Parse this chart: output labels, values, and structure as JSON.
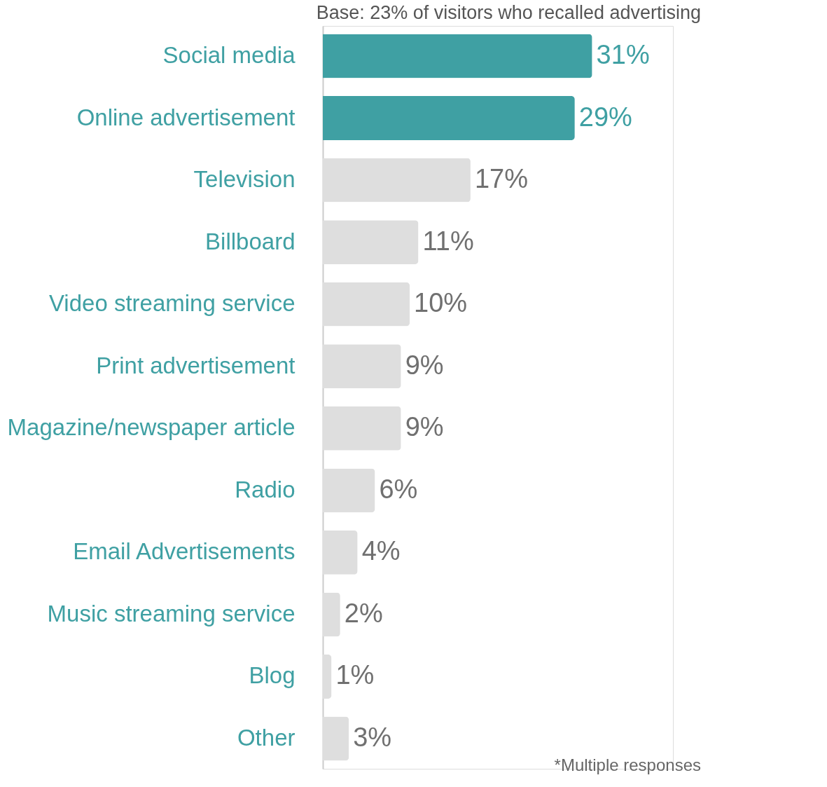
{
  "chart_data": {
    "type": "bar",
    "orientation": "horizontal",
    "categories": [
      "Social media",
      "Online advertisement",
      "Television",
      "Billboard",
      "Video streaming service",
      "Print advertisement",
      "Magazine/newspaper article",
      "Radio",
      "Email Advertisements",
      "Music streaming service",
      "Blog",
      "Other"
    ],
    "values": [
      31,
      29,
      17,
      11,
      10,
      9,
      9,
      6,
      4,
      2,
      1,
      3
    ],
    "value_labels": [
      "31%",
      "29%",
      "17%",
      "11%",
      "10%",
      "9%",
      "9%",
      "6%",
      "4%",
      "2%",
      "1%",
      "3%"
    ],
    "colors": [
      "#3fa0a3",
      "#3fa0a3",
      "#dedede",
      "#dedede",
      "#dedede",
      "#dedede",
      "#dedede",
      "#dedede",
      "#dedede",
      "#dedede",
      "#dedede",
      "#dedede"
    ],
    "annotations": [
      "Base: 23% of visitors who recalled advertising",
      "*Multiple responses"
    ],
    "grid": false,
    "legend": false
  }
}
